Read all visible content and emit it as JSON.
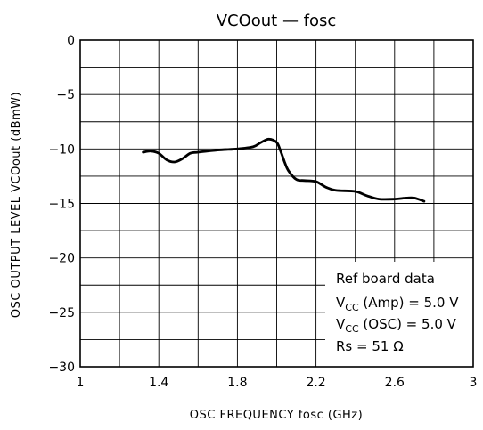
{
  "chart_data": {
    "type": "line",
    "title": "VCOout — fosc",
    "xlabel": "OSC FREQUENCY   fosc   (GHz)",
    "ylabel": "OSC OUTPUT LEVEL   VCOout   (dBmW)",
    "xlim": [
      1,
      3
    ],
    "ylim": [
      -30,
      0
    ],
    "x_ticks": [
      "1",
      "1.4",
      "1.8",
      "2.2",
      "2.6",
      "3"
    ],
    "y_ticks": [
      "0",
      "−5",
      "−10",
      "−15",
      "−20",
      "−25",
      "−30"
    ],
    "grid": true,
    "series": [
      {
        "x": [
          1.32,
          1.36,
          1.4,
          1.44,
          1.48,
          1.52,
          1.56,
          1.6,
          1.7,
          1.8,
          1.88,
          1.92,
          1.96,
          2.0,
          2.02,
          2.04,
          2.06,
          2.1,
          2.14,
          2.2,
          2.25,
          2.3,
          2.4,
          2.46,
          2.52,
          2.6,
          2.66,
          2.7,
          2.75
        ],
        "y": [
          -10.3,
          -10.2,
          -10.4,
          -11.0,
          -11.2,
          -10.9,
          -10.4,
          -10.3,
          -10.1,
          -10.0,
          -9.8,
          -9.4,
          -9.1,
          -9.4,
          -10.2,
          -11.2,
          -12.0,
          -12.8,
          -12.9,
          -13.0,
          -13.5,
          -13.8,
          -13.9,
          -14.3,
          -14.6,
          -14.6,
          -14.5,
          -14.5,
          -14.8
        ]
      }
    ],
    "annotation": {
      "line1": "Ref board data",
      "line2": {
        "main": "V",
        "sub": "CC",
        "rest": " (Amp) = 5.0 V"
      },
      "line3": {
        "main": "V",
        "sub": "CC",
        "rest": " (OSC) = 5.0 V"
      },
      "line4": "Rs = 51 Ω"
    }
  },
  "colors": {
    "line": "#000000",
    "grid": "#000000",
    "background": "#ffffff"
  }
}
